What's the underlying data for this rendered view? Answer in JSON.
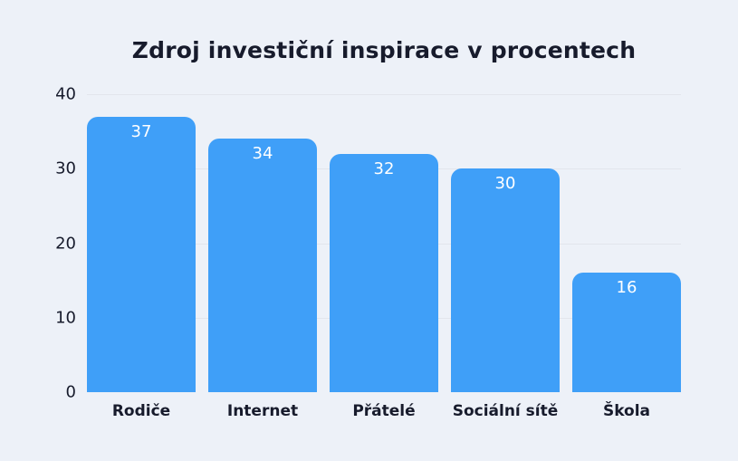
{
  "colors": {
    "background": "#edf1f8",
    "bar": "#3f9ff8",
    "text": "#171b2c",
    "grid": "#e2e5ec",
    "value_label": "#ffffff"
  },
  "chart_data": {
    "type": "bar",
    "title": "Zdroj investiční inspirace v procentech",
    "categories": [
      "Rodiče",
      "Internet",
      "Přátelé",
      "Sociální sítě",
      "Škola"
    ],
    "values": [
      37,
      34,
      32,
      30,
      16
    ],
    "xlabel": "",
    "ylabel": "",
    "ylim": [
      0,
      40
    ],
    "yticks": [
      40,
      30,
      20,
      10,
      0
    ],
    "grid": true,
    "legend": false,
    "value_label_position": "inside-top"
  }
}
